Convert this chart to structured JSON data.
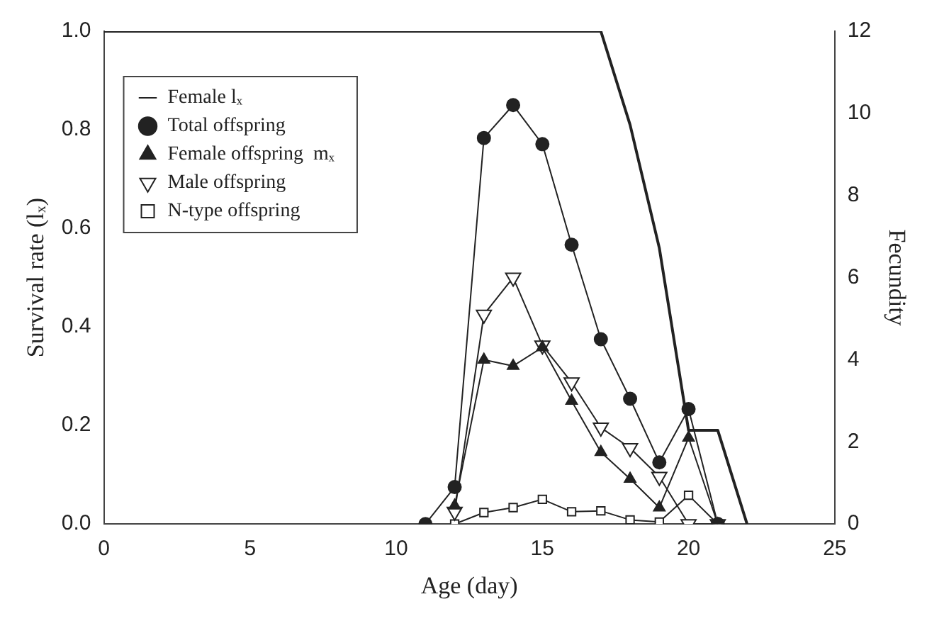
{
  "chart_data": {
    "type": "line",
    "xlabel": "Age (day)",
    "ylabel": "Survival rate (lₓ)",
    "y2label": "Fecundity",
    "xlim": [
      0,
      25
    ],
    "xticks": [
      0,
      5,
      10,
      15,
      20,
      25
    ],
    "ylim": [
      0,
      1
    ],
    "yticks": [
      {
        "value": 0,
        "label": "0.0"
      },
      {
        "value": 0.2,
        "label": "0.2"
      },
      {
        "value": 0.4,
        "label": "0.4"
      },
      {
        "value": 0.6,
        "label": "0.6"
      },
      {
        "value": 0.8,
        "label": "0.8"
      },
      {
        "value": 1,
        "label": "1.0"
      }
    ],
    "y2lim": [
      0,
      12
    ],
    "y2ticks": [
      0,
      2,
      4,
      6,
      8,
      10,
      12
    ],
    "legend": "top left",
    "grid": false,
    "line_style": "solid",
    "series": [
      {
        "name": "Female lₓ",
        "color": "#222222",
        "marker": "none",
        "x": [
          0,
          17,
          18,
          19,
          20,
          21,
          22
        ],
        "values": [
          1,
          1,
          0.81,
          0.56,
          0.19,
          0.19,
          0
        ]
      },
      {
        "name": "Total offspring",
        "color": "#222222",
        "marker": "circle",
        "axis": "y2",
        "x": [
          11,
          12,
          13,
          14,
          15,
          16,
          17,
          18,
          19,
          20,
          21
        ],
        "values": [
          0,
          0.9,
          9.4,
          10.2,
          9.25,
          6.8,
          4.5,
          3.05,
          1.5,
          2.8,
          0
        ]
      },
      {
        "name": "Female offspring  mₓ",
        "color": "#222222",
        "marker": "triangle",
        "axis": "y2",
        "x": [
          12,
          13,
          14,
          15,
          16,
          17,
          18,
          19,
          20,
          21
        ],
        "values": [
          0.45,
          4,
          3.85,
          4.3,
          3,
          1.75,
          1.1,
          0.4,
          2.1,
          0
        ]
      },
      {
        "name": "Male offspring",
        "color": "#222222",
        "marker": "triangle-down",
        "axis": "y2",
        "x": [
          12,
          13,
          14,
          15,
          16,
          17,
          18,
          19,
          20,
          21
        ],
        "values": [
          0.3,
          5.1,
          6,
          4.35,
          3.45,
          2.35,
          1.85,
          1.15,
          0,
          0
        ]
      },
      {
        "name": "N-type offspring",
        "color": "#222222",
        "marker": "square",
        "axis": "y2",
        "x": [
          12,
          13,
          14,
          15,
          16,
          17,
          18,
          19,
          20,
          21
        ],
        "values": [
          0,
          0.28,
          0.4,
          0.6,
          0.3,
          0.32,
          0.1,
          0.05,
          0.7,
          0
        ]
      }
    ]
  }
}
